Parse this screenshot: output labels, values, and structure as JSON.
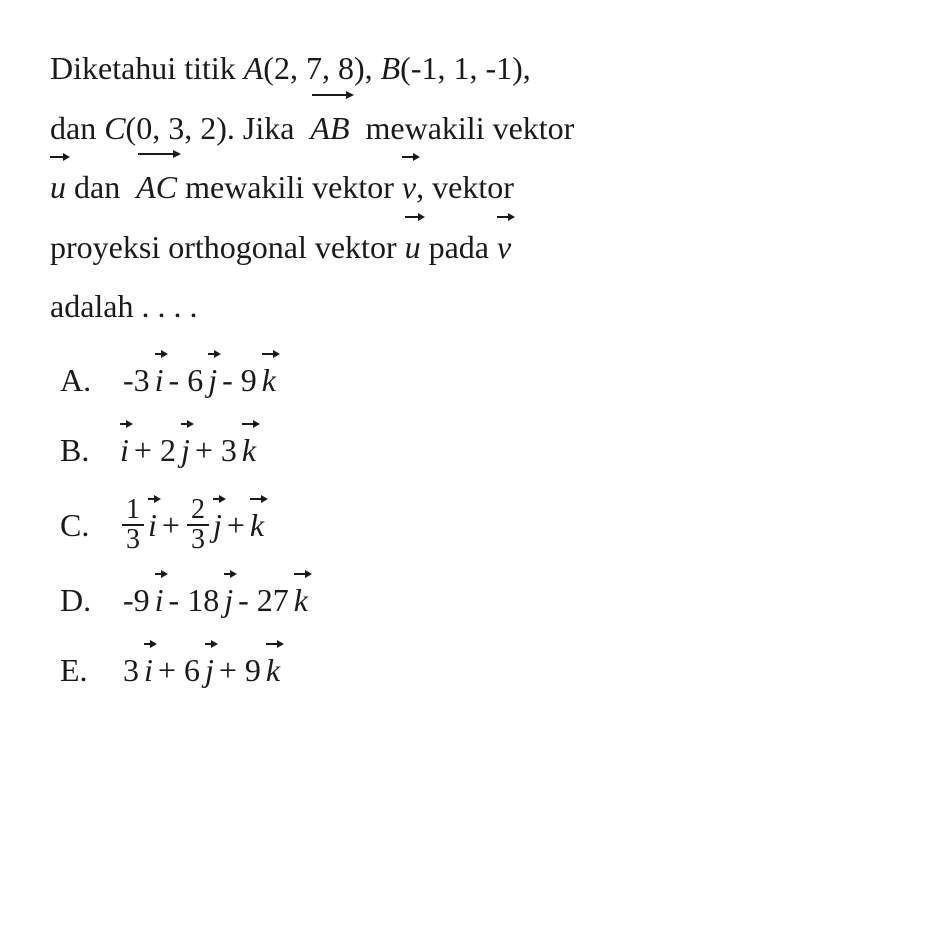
{
  "question": {
    "line1_pre": "Diketahui titik ",
    "pointA_name": "A",
    "pointA_coords": "(2, 7, 8), ",
    "pointB_name": "B",
    "pointB_coords": "(-1, 1, -1),",
    "line2_pre": "dan ",
    "pointC_name": "C",
    "pointC_coords": "(0, 3, 2). Jika ",
    "vecAB": "AB",
    "line2_post": " mewakili vektor",
    "vec_u1": "u",
    "line3_mid1": " dan ",
    "vecAC": "AC",
    "line3_mid2": " mewakili vektor ",
    "vec_v1": "v",
    "line3_post": ", vektor",
    "line4_pre": "proyeksi orthogonal vektor ",
    "vec_u2": "u",
    "line4_mid": " pada ",
    "vec_v2": "v",
    "line5": "adalah . . . ."
  },
  "options": {
    "A": {
      "label": "A.",
      "c1": "-3",
      "v1": "i",
      "op1": " - ",
      "c2": "6",
      "v2": "j",
      "op2": " - ",
      "c3": "9",
      "v3": "k"
    },
    "B": {
      "label": "B.",
      "v1": "i",
      "op1": " + ",
      "c2": "2",
      "v2": "j",
      "op2": " + ",
      "c3": "3",
      "v3": "k"
    },
    "C": {
      "label": "C.",
      "f1n": "1",
      "f1d": "3",
      "v1": "i",
      "op1": " + ",
      "f2n": "2",
      "f2d": "3",
      "v2": "j",
      "op2": " + ",
      "v3": "k"
    },
    "D": {
      "label": "D.",
      "c1": "-9",
      "v1": "i",
      "op1": " - ",
      "c2": "18",
      "v2": "j",
      "op2": " - ",
      "c3": "27",
      "v3": "k"
    },
    "E": {
      "label": "E.",
      "c1": "3",
      "v1": "i",
      "op1": " + ",
      "c2": "6",
      "v2": "j",
      "op2": " + ",
      "c3": "9",
      "v3": "k"
    }
  },
  "style": {
    "text_color": "#1a1a1a",
    "background_color": "#ffffff",
    "font_family": "Times New Roman",
    "question_fontsize": 32,
    "option_fontsize": 32
  }
}
